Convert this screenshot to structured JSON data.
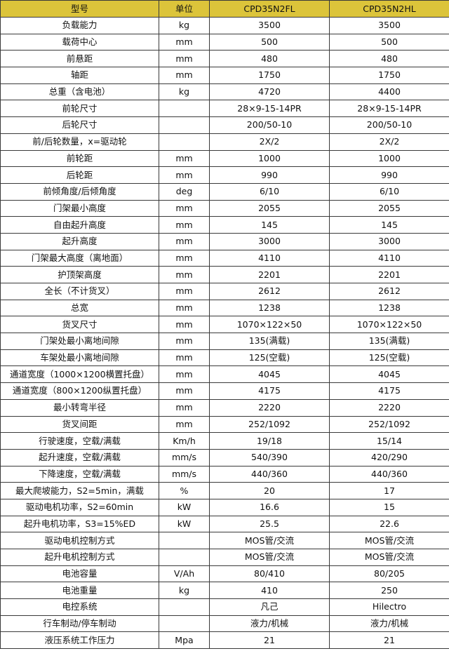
{
  "header_color": "#dcc43a",
  "headers": [
    "型号",
    "单位",
    "CPD35N2FL",
    "CPD35N2HL"
  ],
  "rows": [
    [
      "负载能力",
      "kg",
      "3500",
      "3500"
    ],
    [
      "载荷中心",
      "mm",
      "500",
      "500"
    ],
    [
      "前悬距",
      "mm",
      "480",
      "480"
    ],
    [
      "轴距",
      "mm",
      "1750",
      "1750"
    ],
    [
      "总重（含电池）",
      "kg",
      "4720",
      "4400"
    ],
    [
      "前轮尺寸",
      "",
      "28×9-15-14PR",
      "28×9-15-14PR"
    ],
    [
      "后轮尺寸",
      "",
      "200/50-10",
      "200/50-10"
    ],
    [
      "前/后轮数量，x=驱动轮",
      "",
      "2X/2",
      "2X/2"
    ],
    [
      "前轮距",
      "mm",
      "1000",
      "1000"
    ],
    [
      "后轮距",
      "mm",
      "990",
      "990"
    ],
    [
      "前倾角度/后倾角度",
      "deg",
      "6/10",
      "6/10"
    ],
    [
      "门架最小高度",
      "mm",
      "2055",
      "2055"
    ],
    [
      "自由起升高度",
      "mm",
      "145",
      "145"
    ],
    [
      "起升高度",
      "mm",
      "3000",
      "3000"
    ],
    [
      "门架最大高度（离地面）",
      "mm",
      "4110",
      "4110"
    ],
    [
      "护顶架高度",
      "mm",
      "2201",
      "2201"
    ],
    [
      "全长（不计货叉）",
      "mm",
      "2612",
      "2612"
    ],
    [
      "总宽",
      "mm",
      "1238",
      "1238"
    ],
    [
      "货叉尺寸",
      "mm",
      "1070×122×50",
      "1070×122×50"
    ],
    [
      "门架处最小离地间隙",
      "mm",
      "135(满载)",
      "135(满载)"
    ],
    [
      "车架处最小离地间隙",
      "mm",
      "125(空载)",
      "125(空载)"
    ],
    [
      "通道宽度（1000×1200横置托盘）",
      "mm",
      "4045",
      "4045"
    ],
    [
      "通道宽度（800×1200纵置托盘）",
      "mm",
      "4175",
      "4175"
    ],
    [
      "最小转弯半径",
      "mm",
      "2220",
      "2220"
    ],
    [
      "货叉间距",
      "mm",
      "252/1092",
      "252/1092"
    ],
    [
      "行驶速度，空载/满载",
      "Km/h",
      "19/18",
      "15/14"
    ],
    [
      "起升速度，空载/满载",
      "mm/s",
      "540/390",
      "420/290"
    ],
    [
      "下降速度，空载/满载",
      "mm/s",
      "440/360",
      "440/360"
    ],
    [
      "最大爬坡能力，S2=5min，满载",
      "%",
      "20",
      "17"
    ],
    [
      "驱动电机功率，S2=60min",
      "kW",
      "16.6",
      "15"
    ],
    [
      "起升电机功率，S3=15%ED",
      "kW",
      "25.5",
      "22.6"
    ],
    [
      "驱动电机控制方式",
      "",
      "MOS管/交流",
      "MOS管/交流"
    ],
    [
      "起升电机控制方式",
      "",
      "MOS管/交流",
      "MOS管/交流"
    ],
    [
      "电池容量",
      "V/Ah",
      "80/410",
      "80/205"
    ],
    [
      "电池重量",
      "kg",
      "410",
      "250"
    ],
    [
      "电控系统",
      "",
      "凡己",
      "Hilectro"
    ],
    [
      "行车制动/停车制动",
      "",
      "液力/机械",
      "液力/机械"
    ],
    [
      "液压系统工作压力",
      "Mpa",
      "21",
      "21"
    ]
  ]
}
